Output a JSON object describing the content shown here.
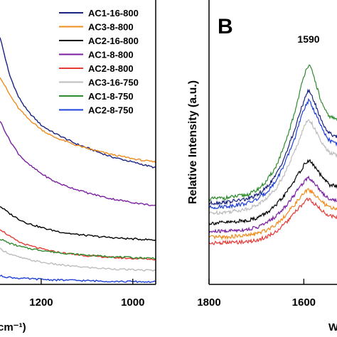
{
  "chart_data": [
    {
      "panel": "",
      "type": "line",
      "x_tick_labels": [
        "1200",
        "1000"
      ],
      "x_ticks": [
        1200,
        1000
      ],
      "xlabel_fragment": "cm⁻¹)",
      "xlim": [
        1290,
        950
      ],
      "ylim": [
        0,
        10
      ],
      "grid": false,
      "legend_position": "top-right",
      "series": [
        {
          "name": "AC1-16-800",
          "color": "#1a237e",
          "x": [
            1290,
            1270,
            1250,
            1230,
            1200,
            1175,
            1150,
            1125,
            1100,
            1075,
            1050,
            1025,
            1000,
            975,
            950
          ],
          "y": [
            8.7,
            7.4,
            6.6,
            6.1,
            5.6,
            5.35,
            5.15,
            4.95,
            4.8,
            4.65,
            4.5,
            4.4,
            4.3,
            4.2,
            4.1
          ]
        },
        {
          "name": "AC3-8-800",
          "color": "#f08c1e",
          "x": [
            1290,
            1270,
            1250,
            1230,
            1200,
            1175,
            1150,
            1125,
            1100,
            1075,
            1050,
            1025,
            1000,
            975,
            950
          ],
          "y": [
            7.3,
            6.7,
            6.2,
            5.85,
            5.45,
            5.2,
            5.05,
            4.9,
            4.78,
            4.68,
            4.58,
            4.5,
            4.42,
            4.35,
            4.3
          ]
        },
        {
          "name": "AC2-16-800",
          "color": "#000000",
          "x": [
            1290,
            1270,
            1250,
            1230,
            1200,
            1175,
            1150,
            1125,
            1100,
            1075,
            1050,
            1025,
            1000,
            975,
            950
          ],
          "y": [
            2.75,
            2.5,
            2.3,
            2.15,
            2.0,
            1.9,
            1.82,
            1.76,
            1.72,
            1.68,
            1.65,
            1.62,
            1.6,
            1.58,
            1.56
          ]
        },
        {
          "name": "AC1-8-800",
          "color": "#7b1fa2",
          "x": [
            1290,
            1270,
            1250,
            1230,
            1200,
            1175,
            1150,
            1125,
            1100,
            1075,
            1050,
            1025,
            1000,
            975,
            950
          ],
          "y": [
            5.75,
            5.1,
            4.6,
            4.25,
            3.9,
            3.65,
            3.48,
            3.35,
            3.22,
            3.12,
            3.02,
            2.95,
            2.88,
            2.82,
            2.76
          ]
        },
        {
          "name": "AC2-8-800",
          "color": "#e53935",
          "x": [
            1290,
            1270,
            1250,
            1230,
            1200,
            1175,
            1150,
            1125,
            1100,
            1075,
            1050,
            1025,
            1000,
            975,
            950
          ],
          "y": [
            1.95,
            1.7,
            1.5,
            1.38,
            1.25,
            1.16,
            1.1,
            1.05,
            1.01,
            0.98,
            0.95,
            0.93,
            0.91,
            0.9,
            0.88
          ]
        },
        {
          "name": "AC3-16-750",
          "color": "#bdbdbd",
          "x": [
            1290,
            1270,
            1250,
            1230,
            1200,
            1175,
            1150,
            1125,
            1100,
            1075,
            1050,
            1025,
            1000,
            975,
            950
          ],
          "y": [
            1.25,
            1.08,
            0.96,
            0.88,
            0.78,
            0.72,
            0.67,
            0.63,
            0.6,
            0.57,
            0.55,
            0.53,
            0.51,
            0.5,
            0.49
          ]
        },
        {
          "name": "AC1-8-750",
          "color": "#2e8b2e",
          "x": [
            1290,
            1270,
            1250,
            1230,
            1200,
            1175,
            1150,
            1125,
            1100,
            1075,
            1050,
            1025,
            1000,
            975,
            950
          ],
          "y": [
            1.6,
            1.45,
            1.35,
            1.27,
            1.2,
            1.14,
            1.1,
            1.06,
            1.03,
            1.0,
            0.98,
            0.96,
            0.94,
            0.93,
            0.92
          ]
        },
        {
          "name": "AC2-8-750",
          "color": "#1e40d8",
          "x": [
            1290,
            1270,
            1250,
            1230,
            1200,
            1175,
            1150,
            1125,
            1100,
            1075,
            1050,
            1025,
            1000,
            975,
            950
          ],
          "y": [
            0.3,
            0.25,
            0.22,
            0.2,
            0.18,
            0.16,
            0.15,
            0.14,
            0.13,
            0.12,
            0.11,
            0.1,
            0.1,
            0.09,
            0.09
          ]
        }
      ]
    },
    {
      "panel": "B",
      "type": "line",
      "ylabel": "Relative Intensity (a.u.)",
      "xlabel_fragment": "W",
      "x_tick_labels": [
        "1800",
        "1600"
      ],
      "x_ticks": [
        1800,
        1600
      ],
      "xlim": [
        1800,
        1530
      ],
      "ylim": [
        0,
        10
      ],
      "grid": false,
      "annotations": [
        {
          "text": "1590",
          "x": 1590
        }
      ],
      "series": [
        {
          "color": "#2e8b2e",
          "x": [
            1800,
            1760,
            1720,
            1700,
            1680,
            1660,
            1640,
            1620,
            1605,
            1595,
            1590,
            1585,
            1575,
            1565,
            1555,
            1545,
            1530
          ],
          "y": [
            3.0,
            3.05,
            3.15,
            3.3,
            3.6,
            4.1,
            4.9,
            6.0,
            7.0,
            7.6,
            7.7,
            7.6,
            7.1,
            6.5,
            6.1,
            5.9,
            5.8
          ]
        },
        {
          "color": "#1a237e",
          "x": [
            1800,
            1760,
            1720,
            1700,
            1680,
            1660,
            1640,
            1620,
            1605,
            1595,
            1590,
            1585,
            1575,
            1565,
            1555,
            1545,
            1530
          ],
          "y": [
            2.85,
            2.9,
            3.0,
            3.12,
            3.38,
            3.8,
            4.5,
            5.4,
            6.2,
            6.7,
            6.8,
            6.7,
            6.3,
            5.85,
            5.5,
            5.3,
            5.2
          ]
        },
        {
          "color": "#1e40d8",
          "x": [
            1800,
            1760,
            1720,
            1700,
            1680,
            1660,
            1640,
            1620,
            1605,
            1595,
            1590,
            1585,
            1575,
            1565,
            1555,
            1545,
            1530
          ],
          "y": [
            2.7,
            2.75,
            2.85,
            2.98,
            3.22,
            3.6,
            4.25,
            5.1,
            5.9,
            6.35,
            6.45,
            6.35,
            6.0,
            5.6,
            5.25,
            5.05,
            4.95
          ]
        },
        {
          "color": "#bdbdbd",
          "x": [
            1800,
            1760,
            1720,
            1700,
            1680,
            1660,
            1640,
            1620,
            1605,
            1595,
            1590,
            1585,
            1575,
            1565,
            1555,
            1545,
            1530
          ],
          "y": [
            2.5,
            2.55,
            2.65,
            2.78,
            3.0,
            3.35,
            3.9,
            4.65,
            5.3,
            5.7,
            5.8,
            5.72,
            5.4,
            5.05,
            4.8,
            4.62,
            4.55
          ]
        },
        {
          "color": "#000000",
          "x": [
            1800,
            1760,
            1720,
            1700,
            1680,
            1660,
            1640,
            1620,
            1605,
            1595,
            1590,
            1585,
            1575,
            1565,
            1555,
            1545,
            1530
          ],
          "y": [
            2.15,
            2.18,
            2.25,
            2.33,
            2.5,
            2.75,
            3.15,
            3.65,
            4.05,
            4.3,
            4.35,
            4.3,
            4.1,
            3.85,
            3.65,
            3.5,
            3.45
          ]
        },
        {
          "color": "#7b1fa2",
          "x": [
            1800,
            1760,
            1720,
            1700,
            1680,
            1660,
            1640,
            1620,
            1605,
            1595,
            1590,
            1585,
            1575,
            1565,
            1555,
            1545,
            1530
          ],
          "y": [
            1.85,
            1.88,
            1.93,
            2.0,
            2.15,
            2.38,
            2.72,
            3.15,
            3.5,
            3.7,
            3.75,
            3.7,
            3.52,
            3.3,
            3.12,
            3.0,
            2.95
          ]
        },
        {
          "color": "#f08c1e",
          "x": [
            1800,
            1760,
            1720,
            1700,
            1680,
            1660,
            1640,
            1620,
            1605,
            1595,
            1590,
            1585,
            1575,
            1565,
            1555,
            1545,
            1530
          ],
          "y": [
            1.65,
            1.67,
            1.72,
            1.78,
            1.9,
            2.1,
            2.4,
            2.8,
            3.1,
            3.28,
            3.32,
            3.28,
            3.12,
            2.95,
            2.8,
            2.7,
            2.65
          ]
        },
        {
          "color": "#e53935",
          "x": [
            1800,
            1760,
            1720,
            1700,
            1680,
            1660,
            1640,
            1620,
            1605,
            1595,
            1590,
            1585,
            1575,
            1565,
            1555,
            1545,
            1530
          ],
          "y": [
            1.45,
            1.47,
            1.5,
            1.55,
            1.66,
            1.84,
            2.12,
            2.5,
            2.78,
            2.95,
            3.0,
            2.95,
            2.8,
            2.64,
            2.5,
            2.42,
            2.38
          ]
        }
      ]
    }
  ]
}
